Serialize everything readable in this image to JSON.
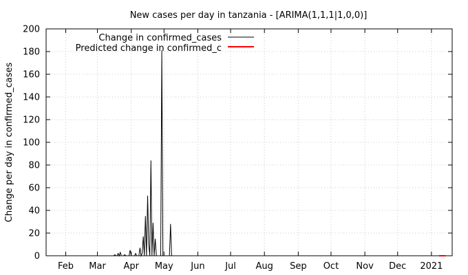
{
  "chart_data": {
    "type": "line",
    "title": "New cases per day in tanzania -  [ARIMA(1,1,1|1,0,0)]",
    "xlabel": "",
    "ylabel": "Change per day in confirmed_cases",
    "ylim": [
      0,
      200
    ],
    "y_ticks": [
      "0",
      "20",
      "40",
      "60",
      "80",
      "100",
      "120",
      "140",
      "160",
      "180",
      "200"
    ],
    "x_range": [
      "2020-01-14",
      "2021-01-20"
    ],
    "x_ticks": [
      {
        "date": "2020-02-01",
        "label": "Feb"
      },
      {
        "date": "2020-03-01",
        "label": "Mar"
      },
      {
        "date": "2020-04-01",
        "label": "Apr"
      },
      {
        "date": "2020-05-01",
        "label": "May"
      },
      {
        "date": "2020-06-01",
        "label": "Jun"
      },
      {
        "date": "2020-07-01",
        "label": "Jul"
      },
      {
        "date": "2020-08-01",
        "label": "Aug"
      },
      {
        "date": "2020-09-01",
        "label": "Sep"
      },
      {
        "date": "2020-10-01",
        "label": "Oct"
      },
      {
        "date": "2020-11-01",
        "label": "Nov"
      },
      {
        "date": "2020-12-01",
        "label": "Dec"
      },
      {
        "date": "2021-01-01",
        "label": "2021"
      }
    ],
    "grid": true,
    "legend_position": "top-left",
    "series": [
      {
        "name": "Change in confirmed_cases",
        "color": "#000000",
        "points": [
          [
            "2020-03-16",
            0
          ],
          [
            "2020-03-17",
            1
          ],
          [
            "2020-03-18",
            0
          ],
          [
            "2020-03-19",
            0
          ],
          [
            "2020-03-20",
            2
          ],
          [
            "2020-03-21",
            0
          ],
          [
            "2020-03-22",
            3
          ],
          [
            "2020-03-23",
            0
          ],
          [
            "2020-03-24",
            0
          ],
          [
            "2020-03-25",
            0
          ],
          [
            "2020-03-26",
            1
          ],
          [
            "2020-03-27",
            0
          ],
          [
            "2020-03-28",
            0
          ],
          [
            "2020-03-29",
            0
          ],
          [
            "2020-03-30",
            0
          ],
          [
            "2020-03-31",
            5
          ],
          [
            "2020-04-01",
            0
          ],
          [
            "2020-04-02",
            0
          ],
          [
            "2020-04-03",
            0
          ],
          [
            "2020-04-04",
            0
          ],
          [
            "2020-04-05",
            2
          ],
          [
            "2020-04-06",
            0
          ],
          [
            "2020-04-07",
            0
          ],
          [
            "2020-04-08",
            0
          ],
          [
            "2020-04-09",
            7
          ],
          [
            "2020-04-10",
            0
          ],
          [
            "2020-04-11",
            2
          ],
          [
            "2020-04-12",
            17
          ],
          [
            "2020-04-13",
            0
          ],
          [
            "2020-04-14",
            35
          ],
          [
            "2020-04-15",
            0
          ],
          [
            "2020-04-16",
            53
          ],
          [
            "2020-04-17",
            10
          ],
          [
            "2020-04-18",
            0
          ],
          [
            "2020-04-19",
            84
          ],
          [
            "2020-04-20",
            0
          ],
          [
            "2020-04-21",
            29
          ],
          [
            "2020-04-22",
            0
          ],
          [
            "2020-04-23",
            15
          ],
          [
            "2020-04-24",
            0
          ],
          [
            "2020-04-25",
            0
          ],
          [
            "2020-04-26",
            0
          ],
          [
            "2020-04-27",
            0
          ],
          [
            "2020-04-28",
            0
          ],
          [
            "2020-04-29",
            181
          ],
          [
            "2020-04-30",
            0
          ],
          [
            "2020-05-01",
            0
          ],
          [
            "2020-05-02",
            0
          ],
          [
            "2020-05-03",
            0
          ],
          [
            "2020-05-04",
            0
          ],
          [
            "2020-05-05",
            0
          ],
          [
            "2020-05-06",
            0
          ],
          [
            "2020-05-07",
            28
          ],
          [
            "2020-05-08",
            0
          ],
          [
            "2020-05-09",
            0
          ],
          [
            "2020-05-10",
            0
          ],
          [
            "2020-05-20",
            0
          ],
          [
            "2020-06-15",
            0
          ],
          [
            "2020-07-15",
            0
          ],
          [
            "2020-08-15",
            0
          ],
          [
            "2020-09-15",
            0
          ],
          [
            "2020-10-15",
            0
          ],
          [
            "2020-11-15",
            0
          ],
          [
            "2020-12-15",
            0
          ],
          [
            "2021-01-07",
            0
          ]
        ]
      },
      {
        "name": "Predicted change in confirmed_c",
        "color": "#ff0000",
        "points": [
          [
            "2021-01-08",
            0
          ],
          [
            "2021-01-10",
            0
          ],
          [
            "2021-01-12",
            0
          ],
          [
            "2021-01-14",
            0
          ]
        ]
      }
    ]
  }
}
